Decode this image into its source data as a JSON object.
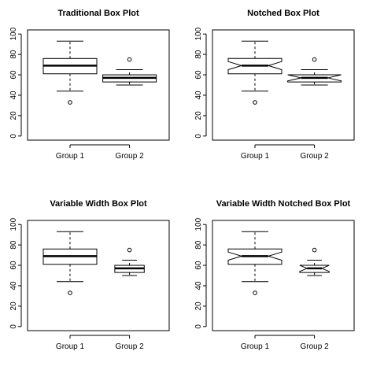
{
  "chart_data": [
    {
      "type": "boxplot",
      "title": "Traditional Box Plot",
      "categories": [
        "Group 1",
        "Group 2"
      ],
      "yticks": [
        0,
        20,
        40,
        60,
        80,
        100
      ],
      "ylim": [
        0,
        100
      ],
      "notched": false,
      "variable_width": false,
      "groups": [
        {
          "name": "Group 1",
          "whisker_low": 44,
          "q1": 61,
          "median": 69,
          "q3": 76,
          "whisker_high": 93,
          "outliers": [
            33
          ],
          "notch": [
            65,
            73
          ],
          "width": 1.0
        },
        {
          "name": "Group 2",
          "whisker_low": 50,
          "q1": 53,
          "median": 57,
          "q3": 60,
          "whisker_high": 65,
          "outliers": [
            75
          ],
          "notch": [
            54,
            60
          ],
          "width": 1.0
        }
      ]
    },
    {
      "type": "boxplot",
      "title": "Notched Box Plot",
      "categories": [
        "Group 1",
        "Group 2"
      ],
      "yticks": [
        0,
        20,
        40,
        60,
        80,
        100
      ],
      "ylim": [
        0,
        100
      ],
      "notched": true,
      "variable_width": false,
      "groups": [
        {
          "name": "Group 1",
          "whisker_low": 44,
          "q1": 61,
          "median": 69,
          "q3": 76,
          "whisker_high": 93,
          "outliers": [
            33
          ],
          "notch": [
            65,
            73
          ],
          "width": 1.0
        },
        {
          "name": "Group 2",
          "whisker_low": 50,
          "q1": 53,
          "median": 57,
          "q3": 60,
          "whisker_high": 65,
          "outliers": [
            75
          ],
          "notch": [
            54,
            60
          ],
          "width": 1.0
        }
      ]
    },
    {
      "type": "boxplot",
      "title": "Variable Width Box Plot",
      "categories": [
        "Group 1",
        "Group 2"
      ],
      "yticks": [
        0,
        20,
        40,
        60,
        80,
        100
      ],
      "ylim": [
        0,
        100
      ],
      "notched": false,
      "variable_width": true,
      "groups": [
        {
          "name": "Group 1",
          "whisker_low": 44,
          "q1": 61,
          "median": 69,
          "q3": 76,
          "whisker_high": 93,
          "outliers": [
            33
          ],
          "notch": [
            65,
            73
          ],
          "width": 1.0
        },
        {
          "name": "Group 2",
          "whisker_low": 50,
          "q1": 53,
          "median": 57,
          "q3": 60,
          "whisker_high": 65,
          "outliers": [
            75
          ],
          "notch": [
            54,
            60
          ],
          "width": 0.55
        }
      ]
    },
    {
      "type": "boxplot",
      "title": "Variable Width Notched Box Plot",
      "categories": [
        "Group 1",
        "Group 2"
      ],
      "yticks": [
        0,
        20,
        40,
        60,
        80,
        100
      ],
      "ylim": [
        0,
        100
      ],
      "notched": true,
      "variable_width": true,
      "groups": [
        {
          "name": "Group 1",
          "whisker_low": 44,
          "q1": 61,
          "median": 69,
          "q3": 76,
          "whisker_high": 93,
          "outliers": [
            33
          ],
          "notch": [
            65,
            73
          ],
          "width": 1.0
        },
        {
          "name": "Group 2",
          "whisker_low": 50,
          "q1": 53,
          "median": 57,
          "q3": 60,
          "whisker_high": 65,
          "outliers": [
            75
          ],
          "notch": [
            54,
            60
          ],
          "width": 0.55
        }
      ]
    }
  ]
}
